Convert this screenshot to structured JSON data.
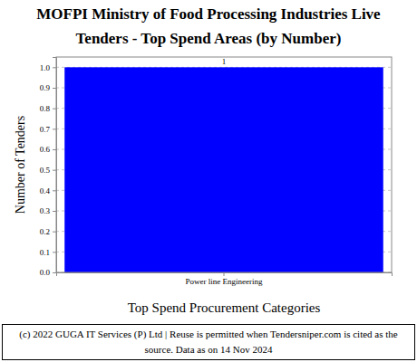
{
  "chart_data": {
    "type": "bar",
    "title": [
      "MOFPI Ministry of Food Processing Industries Live",
      "Tenders - Top Spend Areas (by Number)"
    ],
    "x_label": "Top Spend Procurement Categories",
    "y_label": "Number of Tenders",
    "categories": [
      "Power line Engineering"
    ],
    "values": [
      1
    ],
    "color": "#0000ff",
    "ylim": [
      0,
      1.05
    ],
    "yticks": [
      {
        "value": 0,
        "label": "0.0"
      },
      {
        "value": 0.1,
        "label": "0.1"
      },
      {
        "value": 0.2,
        "label": "0.2"
      },
      {
        "value": 0.3,
        "label": "0.3"
      },
      {
        "value": 0.4,
        "label": "0.4"
      },
      {
        "value": 0.5,
        "label": "0.5"
      },
      {
        "value": 0.6,
        "label": "0.6"
      },
      {
        "value": 0.7,
        "label": "0.7"
      },
      {
        "value": 0.8,
        "label": "0.8"
      },
      {
        "value": 0.9,
        "label": "0.9"
      },
      {
        "value": 1,
        "label": "1.0"
      }
    ],
    "grid": true,
    "data_labels": true,
    "footer": [
      "(c) 2022 GUGA IT Services (P) Ltd | Reuse is permitted when Tendersniper.com is cited as the",
      "source. Data as on 14 Nov 2024"
    ]
  }
}
